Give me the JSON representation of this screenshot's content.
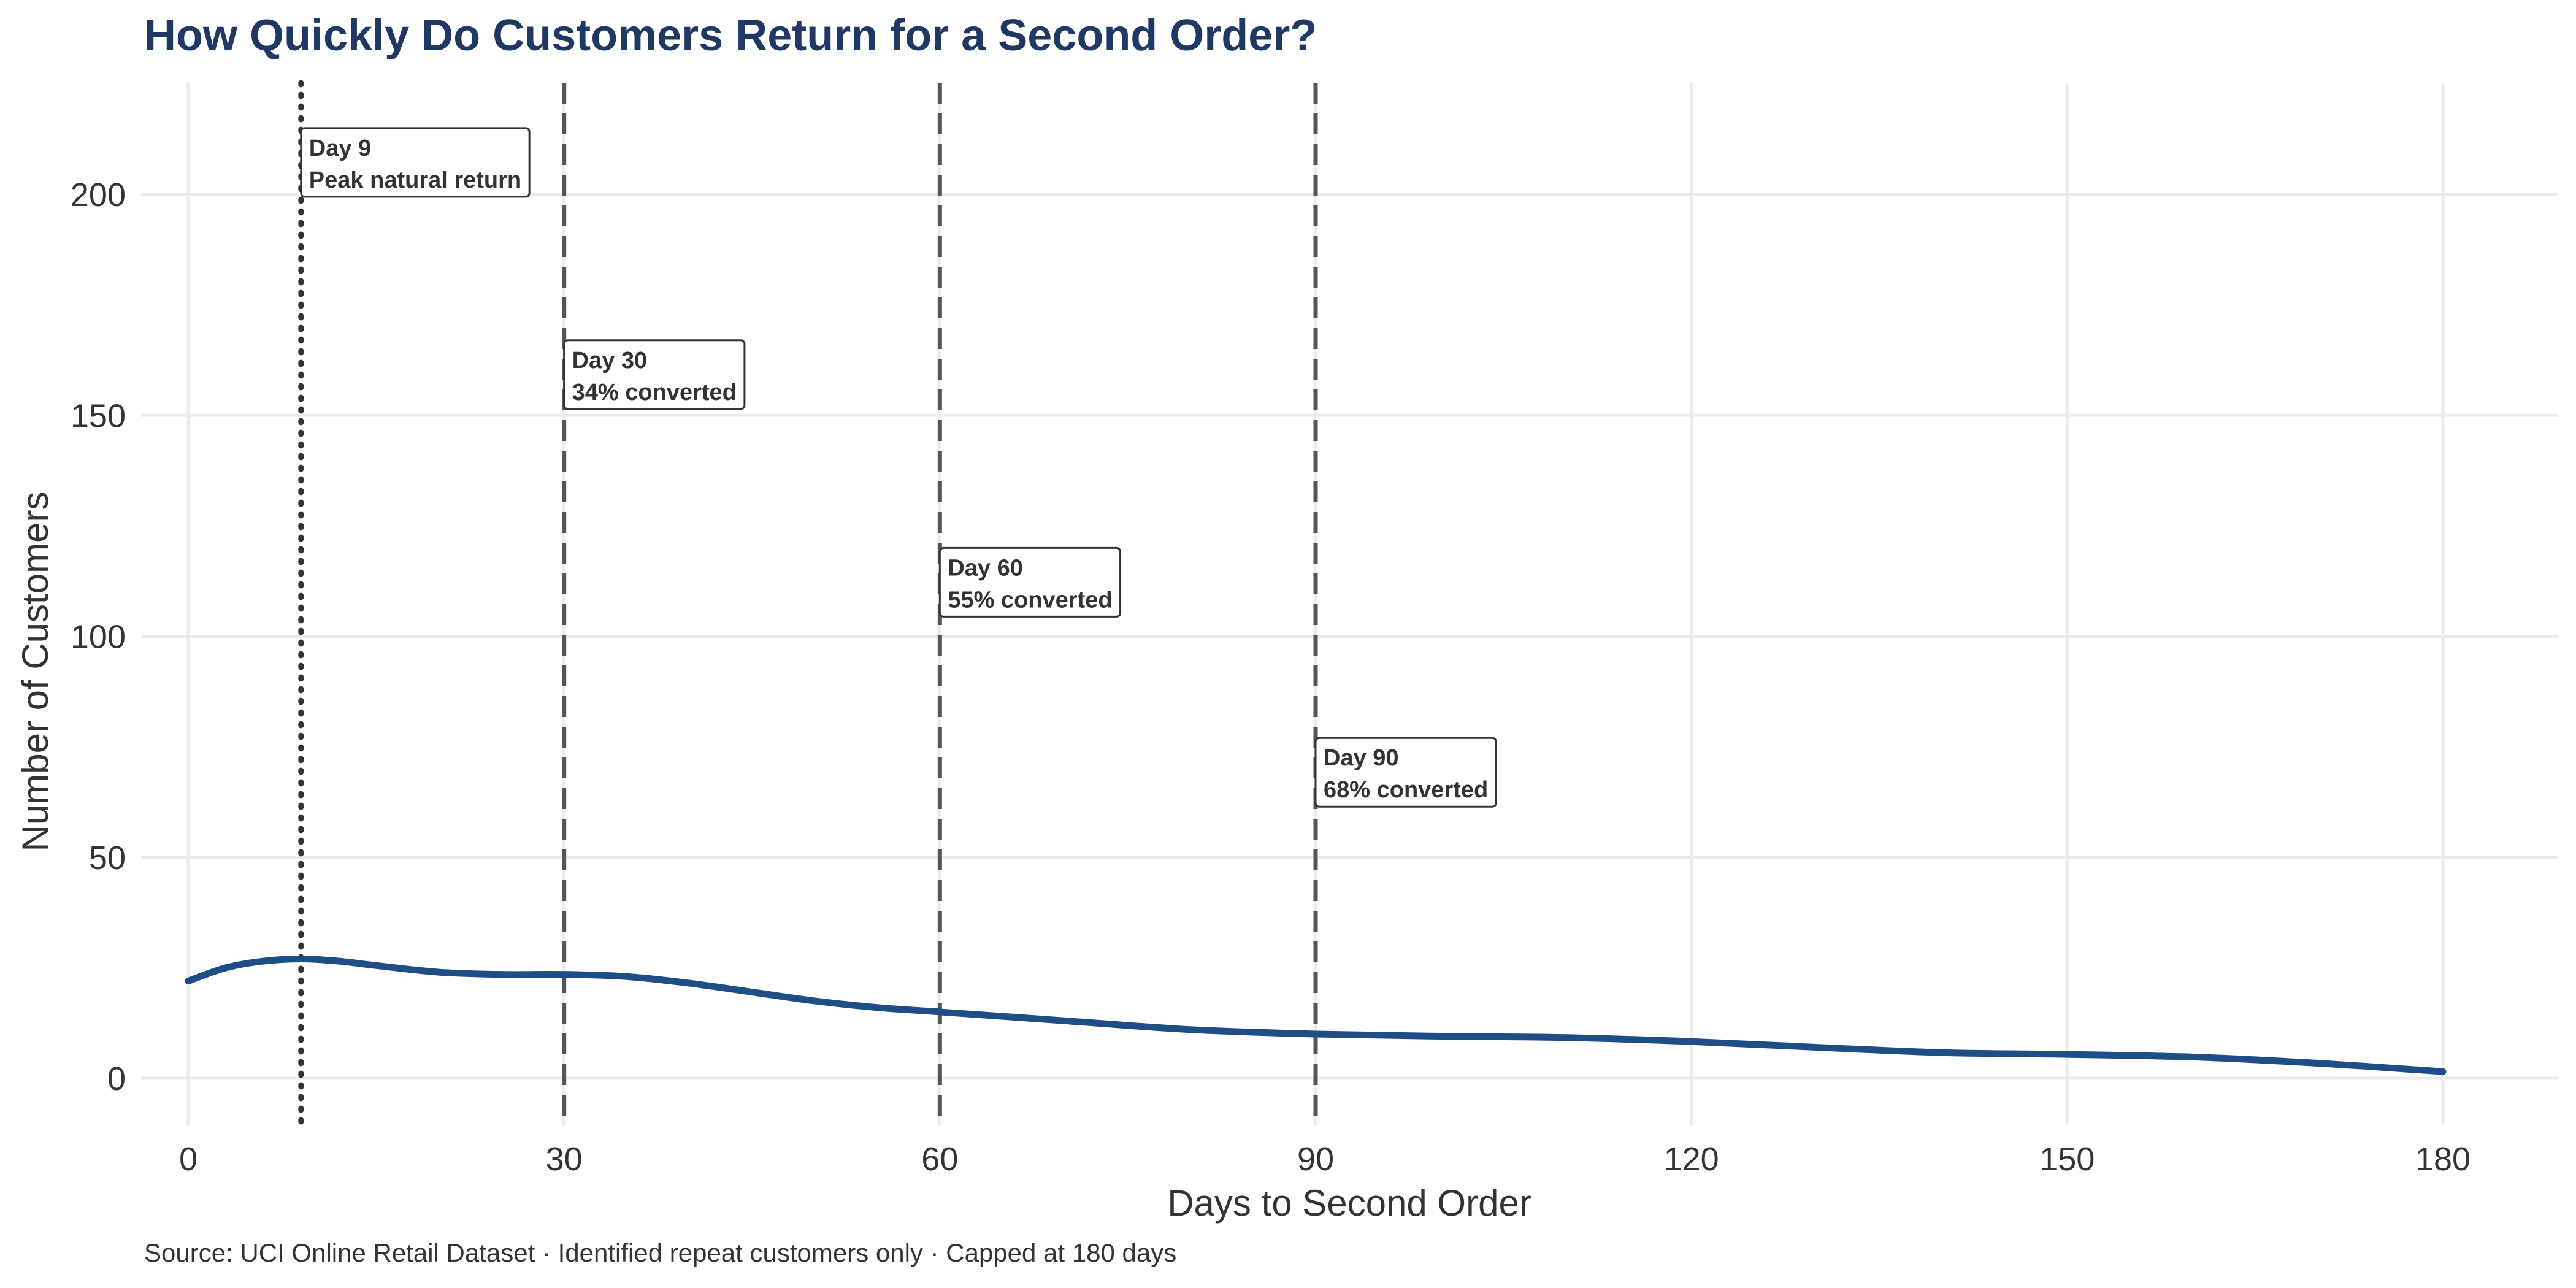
{
  "chart_data": {
    "type": "line",
    "title": "How Quickly Do Customers Return for a Second Order?",
    "caption": "Source: UCI Online Retail Dataset · Identified repeat customers only · Capped at 180 days",
    "xlabel": "Days to Second Order",
    "ylabel": "Number of Customers",
    "xlim": [
      0,
      180
    ],
    "ylim": [
      0,
      220
    ],
    "xticks": [
      0,
      30,
      60,
      90,
      120,
      150,
      180
    ],
    "yticks": [
      0,
      50,
      100,
      150,
      200
    ],
    "grid": true,
    "line_color": "#1f4e87",
    "series": [
      {
        "x": [
          0,
          3,
          6,
          9,
          12,
          15,
          20,
          25,
          30,
          35,
          40,
          45,
          50,
          55,
          60,
          70,
          80,
          90,
          100,
          110,
          120,
          130,
          140,
          150,
          160,
          170,
          180
        ],
        "values": [
          22,
          25,
          26.5,
          27,
          26.5,
          25.5,
          24,
          23.5,
          23.5,
          23,
          21.5,
          19.5,
          17.5,
          16,
          15,
          13,
          11,
          10,
          9.5,
          9.2,
          8.3,
          7,
          5.8,
          5.4,
          4.8,
          3.4,
          1.5
        ]
      }
    ],
    "reference_lines": [
      {
        "x": 9,
        "style": "dotted",
        "label_line1": "Day 9",
        "label_line2": "Peak natural return",
        "label_y": 215
      },
      {
        "x": 30,
        "style": "dashed",
        "label_line1": "Day 30",
        "label_line2": "34% converted",
        "label_y": 167
      },
      {
        "x": 60,
        "style": "dashed",
        "label_line1": "Day 60",
        "label_line2": "55% converted",
        "label_y": 120
      },
      {
        "x": 90,
        "style": "dashed",
        "label_line1": "Day 90",
        "label_line2": "68% converted",
        "label_y": 77
      }
    ]
  }
}
